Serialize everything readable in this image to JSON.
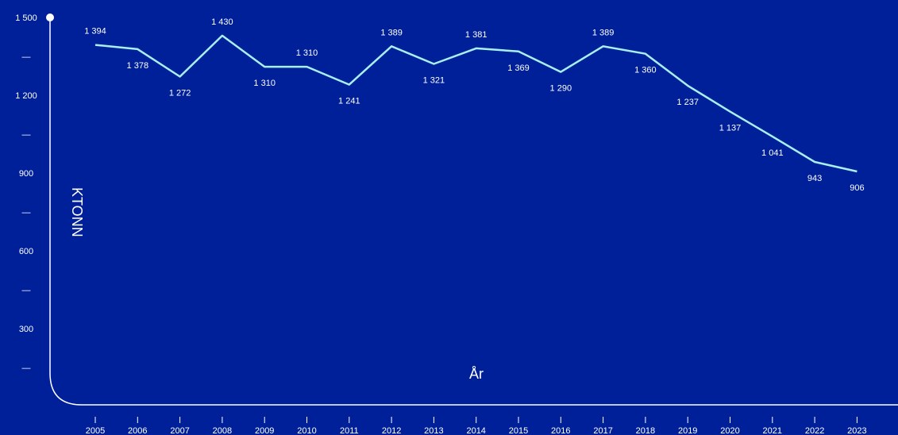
{
  "chart_data": {
    "type": "line",
    "title": "",
    "xlabel": "År",
    "ylabel": "KTONN",
    "ylim": [
      0,
      1500
    ],
    "y_ticks": [
      {
        "value": 1500,
        "label": "1 500"
      },
      {
        "value": 1350,
        "label": "—"
      },
      {
        "value": 1200,
        "label": "1 200"
      },
      {
        "value": 1050,
        "label": "—"
      },
      {
        "value": 900,
        "label": "900"
      },
      {
        "value": 750,
        "label": "—"
      },
      {
        "value": 600,
        "label": "600"
      },
      {
        "value": 450,
        "label": "—"
      },
      {
        "value": 300,
        "label": "300"
      },
      {
        "value": 150,
        "label": "—"
      }
    ],
    "categories": [
      "2005",
      "2006",
      "2007",
      "2008",
      "2009",
      "2010",
      "2011",
      "2012",
      "2013",
      "2014",
      "2015",
      "2016",
      "2017",
      "2018",
      "2019",
      "2020",
      "2021",
      "2022",
      "2023"
    ],
    "series": [
      {
        "values": [
          1394,
          1378,
          1272,
          1430,
          1310,
          1310,
          1241,
          1389,
          1321,
          1381,
          1369,
          1290,
          1389,
          1360,
          1237,
          1137,
          1041,
          943,
          906
        ],
        "labels": [
          "1 394",
          "1 378",
          "1 272",
          "1 430",
          "1 310",
          "1 310",
          "1 241",
          "1 389",
          "1 321",
          "1 381",
          "1 369",
          "1 290",
          "1 389",
          "1 360",
          "1 237",
          "1 137",
          "1 041",
          "943",
          "906"
        ]
      }
    ],
    "grid": false,
    "colors": {
      "background": "#00209a",
      "line": "#a8f0f0",
      "axis": "#ffffff",
      "text": "#ffffff"
    }
  }
}
